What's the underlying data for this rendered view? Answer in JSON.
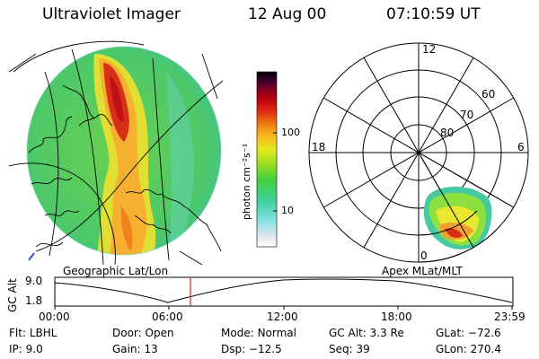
{
  "header": {
    "instrument": "Ultraviolet Imager",
    "date": "12 Aug 00",
    "time": "07:10:59  UT"
  },
  "left_panel": {
    "projection_label": "Geographic Lat/Lon"
  },
  "colorbar": {
    "unit_label": "photon cm⁻²s⁻¹",
    "ticks": [
      "100",
      "10"
    ]
  },
  "right_panel": {
    "projection_label": "Apex  MLat/MLT",
    "mlt_labels": {
      "top": "12",
      "left": "18",
      "right": "6",
      "bottom": "0"
    },
    "mlat_labels": [
      "60",
      "70",
      "80"
    ]
  },
  "altitude_plot": {
    "ylabel": "GC Alt",
    "yticks": [
      "9.0",
      "1.8"
    ],
    "xticks": [
      "00:00",
      "06:00",
      "12:00",
      "18:00",
      "23:59"
    ],
    "current_time_marker": "07:10"
  },
  "status": {
    "flt": {
      "label": "Flt:",
      "value": "LBHL"
    },
    "ip": {
      "label": "IP:",
      "value": "9.0"
    },
    "door": {
      "label": "Door:",
      "value": "Open"
    },
    "gain": {
      "label": "Gain:",
      "value": "13"
    },
    "mode": {
      "label": "Mode:",
      "value": "Normal"
    },
    "dsp": {
      "label": "Dsp:",
      "value": "−12.5"
    },
    "gcalt": {
      "label": "GC Alt:",
      "value": "3.3 Re"
    },
    "seq": {
      "label": "Seq:",
      "value": "39"
    },
    "glat": {
      "label": "GLat:",
      "value": "−72.6"
    },
    "glon": {
      "label": "GLon:",
      "value": "270.4"
    }
  },
  "colors": {
    "scale": [
      "#ffffff",
      "#dfe6ee",
      "#7fe0e0",
      "#3fcfa0",
      "#40d040",
      "#a0e020",
      "#e8e820",
      "#f7b020",
      "#f08010",
      "#e03010",
      "#c00010",
      "#800020",
      "#3a0030",
      "#000000"
    ]
  }
}
